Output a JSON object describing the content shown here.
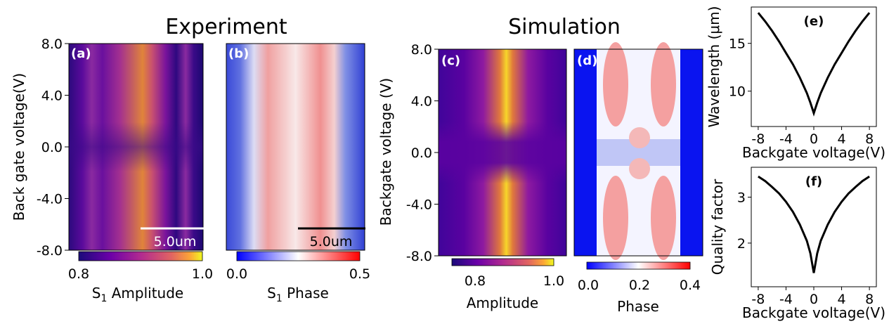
{
  "headings": {
    "experiment": "Experiment",
    "simulation": "Simulation"
  },
  "chart_data": [
    {
      "panel": "(a)",
      "type": "heatmap",
      "ylabel": "Back gate voltage(V)",
      "yticks": [
        "8.0",
        "4.0",
        "0.0",
        "-4.0",
        "-8.0"
      ],
      "ylim": [
        -8,
        8
      ],
      "scale_bar": "5.0um",
      "colorbar": {
        "label": "S1 Amplitude",
        "label_main": "S",
        "label_sub": "1",
        "label_rest": " Amplitude",
        "ticks": [
          "0.8",
          "1.0"
        ],
        "colormap": "plasma"
      }
    },
    {
      "panel": "(b)",
      "type": "heatmap",
      "scale_bar": "5.0um",
      "colorbar": {
        "label": "S1 Phase",
        "label_main": "S",
        "label_sub": "1",
        "label_rest": " Phase",
        "ticks": [
          "0.0",
          "0.5"
        ],
        "colormap": "bwr"
      }
    },
    {
      "panel": "(c)",
      "type": "heatmap",
      "ylabel": "Backgate voltage (V)",
      "yticks": [
        "8.0",
        "4.0",
        "0.0",
        "-4.0",
        "-8.0"
      ],
      "ylim": [
        -8,
        8
      ],
      "colorbar": {
        "label": "Amplitude",
        "ticks": [
          "0.8",
          "1.0"
        ],
        "colormap": "plasma"
      }
    },
    {
      "panel": "(d)",
      "type": "heatmap",
      "colorbar": {
        "label": "Phase",
        "ticks": [
          "0.0",
          "0.2",
          "0.4"
        ],
        "colormap": "bwr"
      }
    },
    {
      "panel": "(e)",
      "type": "line",
      "xlabel": "Backgate voltage(V)",
      "ylabel": "Wavelength (μm)",
      "xticks": [
        -8,
        -4,
        0,
        4,
        8
      ],
      "yticks": [
        10,
        15
      ],
      "xlim": [
        -9,
        9
      ],
      "ylim": [
        6.3,
        18.8
      ],
      "x": [
        -8,
        -7,
        -6,
        -5,
        -4,
        -3,
        -2,
        -1,
        -0.5,
        0,
        0.5,
        1,
        2,
        3,
        4,
        5,
        6,
        7,
        8
      ],
      "y": [
        18.2,
        17.3,
        16.3,
        15.2,
        14.0,
        12.8,
        11.4,
        9.8,
        8.8,
        7.7,
        8.8,
        9.8,
        11.4,
        12.8,
        14.0,
        15.2,
        16.3,
        17.3,
        18.2
      ]
    },
    {
      "panel": "(f)",
      "type": "line",
      "xlabel": "Backgate voltage(V)",
      "ylabel": "Quality factor",
      "xticks": [
        -8,
        -4,
        0,
        4,
        8
      ],
      "yticks": [
        2,
        3
      ],
      "xlim": [
        -9,
        9
      ],
      "ylim": [
        1.05,
        3.65
      ],
      "x": [
        -8,
        -7,
        -6,
        -5,
        -4,
        -3,
        -2,
        -1,
        -0.5,
        0,
        0.5,
        1,
        2,
        3,
        4,
        5,
        6,
        7,
        8
      ],
      "y": [
        3.45,
        3.35,
        3.22,
        3.08,
        2.9,
        2.68,
        2.4,
        2.05,
        1.78,
        1.35,
        1.78,
        2.05,
        2.4,
        2.68,
        2.9,
        3.08,
        3.22,
        3.35,
        3.45
      ]
    }
  ]
}
